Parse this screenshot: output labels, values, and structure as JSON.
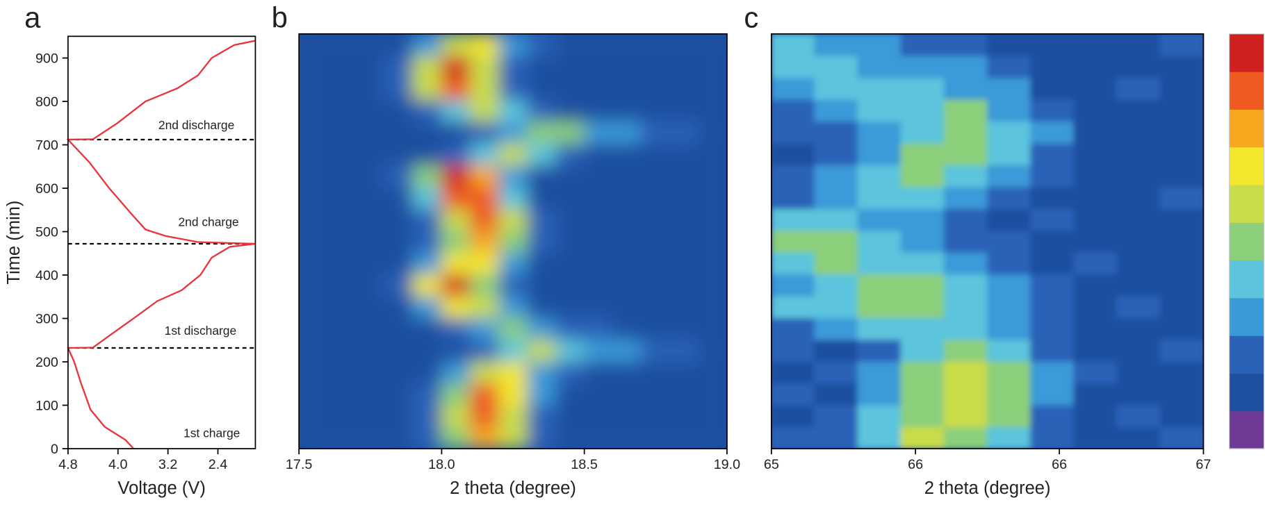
{
  "chart_data": [
    {
      "type": "line",
      "panel_label": "a",
      "xlabel": "Voltage (V)",
      "ylabel": "Time (min)",
      "xlim": [
        4.8,
        1.8
      ],
      "xticks": [
        4.8,
        {
          "value": 4,
          "label": "4.0"
        },
        3.2,
        2.4
      ],
      "ylim": [
        0,
        950
      ],
      "yticks": [
        0,
        100,
        200,
        300,
        400,
        500,
        600,
        700,
        800,
        900
      ],
      "x": [
        3.75,
        3.88,
        4.21,
        4.44,
        4.49,
        4.59,
        4.7,
        4.8,
        4.4,
        4.14,
        3.75,
        3.37,
        2.98,
        2.68,
        2.5,
        2.21,
        1.8,
        2.72,
        3.24,
        3.56,
        3.78,
        4.14,
        4.46,
        4.8,
        4.4,
        4.01,
        3.56,
        3.05,
        2.72,
        2.5,
        2.14,
        1.8
      ],
      "series": [
        {
          "color": "#e8343a",
          "values": [
            0,
            20,
            50,
            90,
            110,
            150,
            200,
            232,
            233,
            260,
            300,
            340,
            365,
            400,
            440,
            465,
            472,
            476,
            490,
            505,
            540,
            600,
            660,
            712,
            713,
            750,
            800,
            830,
            860,
            900,
            930,
            940
          ]
        }
      ],
      "hlines": [
        232,
        472,
        712
      ],
      "annotations": [
        "2nd discharge",
        "2nd charge",
        "1st discharge",
        "1st charge"
      ]
    },
    {
      "type": "heatmap",
      "panel_label": "b",
      "xlabel": "2 theta (degree)",
      "xlim": [
        17.5,
        19.0
      ],
      "xticks": [
        17.5,
        {
          "value": 18,
          "label": "18.0"
        },
        18.5,
        {
          "value": 19,
          "label": "19.0"
        }
      ],
      "ylim": [
        0,
        950
      ],
      "zlim": [
        0,
        10
      ],
      "colormap": [
        "#6e3a96",
        "#1f4fa0",
        "#2a62b8",
        "#3a9ad8",
        "#5cc4dc",
        "#8ccf7a",
        "#c9dc4a",
        "#f3e62c",
        "#f8a81e",
        "#ee5a22",
        "#d02020"
      ],
      "x": [
        17.55,
        17.65,
        17.75,
        17.85,
        17.95,
        18.05,
        18.15,
        18.25,
        18.35,
        18.45,
        18.55,
        18.65,
        18.75,
        18.85,
        18.95
      ],
      "y": [
        25,
        75,
        125,
        175,
        225,
        275,
        325,
        375,
        425,
        475,
        525,
        575,
        625,
        675,
        725,
        775,
        825,
        875,
        925
      ],
      "z": [
        [
          1,
          1,
          1,
          1,
          2,
          5,
          8,
          6,
          2,
          1,
          1,
          1,
          1,
          1,
          1
        ],
        [
          1,
          1,
          1,
          1,
          2,
          6,
          9,
          6,
          2,
          1,
          1,
          1,
          1,
          1,
          1
        ],
        [
          1,
          1,
          1,
          1,
          2,
          5,
          9,
          7,
          3,
          1,
          1,
          1,
          1,
          1,
          1
        ],
        [
          1,
          1,
          1,
          1,
          1,
          3,
          6,
          7,
          3,
          2,
          1,
          1,
          1,
          1,
          1
        ],
        [
          1,
          1,
          1,
          1,
          1,
          1,
          2,
          4,
          6,
          4,
          3,
          3,
          2,
          2,
          1
        ],
        [
          1,
          1,
          1,
          1,
          1,
          2,
          3,
          5,
          3,
          2,
          2,
          1,
          1,
          1,
          1
        ],
        [
          1,
          1,
          1,
          1,
          3,
          7,
          6,
          3,
          1,
          1,
          1,
          1,
          1,
          1,
          1
        ],
        [
          1,
          1,
          1,
          2,
          7,
          10,
          5,
          2,
          1,
          1,
          1,
          1,
          1,
          1,
          1
        ],
        [
          1,
          1,
          1,
          1,
          3,
          7,
          7,
          3,
          1,
          1,
          1,
          1,
          1,
          1,
          1
        ],
        [
          1,
          1,
          1,
          1,
          2,
          5,
          8,
          5,
          2,
          1,
          1,
          1,
          1,
          1,
          1
        ],
        [
          1,
          1,
          1,
          1,
          2,
          6,
          9,
          6,
          2,
          1,
          1,
          1,
          1,
          1,
          1
        ],
        [
          1,
          1,
          1,
          1,
          4,
          9,
          9,
          4,
          1,
          1,
          1,
          1,
          1,
          1,
          1
        ],
        [
          1,
          1,
          1,
          2,
          5,
          10,
          8,
          3,
          1,
          1,
          1,
          1,
          1,
          1,
          1
        ],
        [
          1,
          1,
          1,
          1,
          1,
          2,
          4,
          6,
          4,
          2,
          1,
          1,
          1,
          1,
          1
        ],
        [
          1,
          1,
          1,
          1,
          1,
          1,
          2,
          3,
          5,
          5,
          3,
          3,
          2,
          2,
          1
        ],
        [
          1,
          1,
          1,
          1,
          2,
          4,
          6,
          4,
          2,
          1,
          1,
          1,
          1,
          1,
          1
        ],
        [
          1,
          1,
          1,
          2,
          6,
          9,
          6,
          2,
          1,
          1,
          1,
          1,
          1,
          1,
          1
        ],
        [
          1,
          1,
          1,
          2,
          6,
          10,
          6,
          2,
          1,
          1,
          1,
          1,
          1,
          1,
          1
        ],
        [
          1,
          1,
          1,
          1,
          3,
          6,
          7,
          3,
          2,
          1,
          1,
          1,
          1,
          1,
          1
        ]
      ]
    },
    {
      "type": "heatmap",
      "panel_label": "c",
      "xlabel": "2 theta (degree)",
      "xlim": [
        65,
        67
      ],
      "xticks": [
        65,
        {
          "value": 65.667,
          "label": "66"
        },
        {
          "value": 66.333,
          "label": "66"
        },
        67
      ],
      "ylim": [
        0,
        950
      ],
      "zlim": [
        0,
        10
      ],
      "colorbar": true,
      "colormap": [
        "#6e3a96",
        "#1f4fa0",
        "#2a62b8",
        "#3a9ad8",
        "#5cc4dc",
        "#8ccf7a",
        "#c9dc4a",
        "#f3e62c",
        "#f8a81e",
        "#ee5a22",
        "#d02020"
      ],
      "x": [
        65.1,
        65.3,
        65.5,
        65.7,
        65.9,
        66.1,
        66.3,
        66.5,
        66.7,
        66.9
      ],
      "y": [
        25,
        75,
        125,
        175,
        225,
        275,
        325,
        375,
        425,
        475,
        525,
        575,
        625,
        675,
        725,
        775,
        825,
        875,
        925
      ],
      "z": [
        [
          2,
          2,
          4,
          6,
          5,
          4,
          2,
          1,
          1,
          2
        ],
        [
          1,
          2,
          4,
          5,
          6,
          5,
          2,
          1,
          2,
          1
        ],
        [
          2,
          1,
          3,
          5,
          6,
          5,
          3,
          1,
          1,
          1
        ],
        [
          1,
          2,
          3,
          5,
          6,
          5,
          3,
          2,
          1,
          1
        ],
        [
          2,
          1,
          2,
          4,
          5,
          4,
          2,
          1,
          1,
          2
        ],
        [
          2,
          3,
          4,
          4,
          4,
          3,
          2,
          1,
          1,
          1
        ],
        [
          4,
          4,
          5,
          5,
          4,
          3,
          2,
          1,
          2,
          1
        ],
        [
          3,
          4,
          5,
          5,
          4,
          3,
          2,
          1,
          1,
          1
        ],
        [
          4,
          5,
          4,
          4,
          3,
          2,
          1,
          2,
          1,
          1
        ],
        [
          5,
          5,
          4,
          3,
          2,
          2,
          1,
          1,
          1,
          1
        ],
        [
          4,
          4,
          3,
          3,
          2,
          1,
          2,
          1,
          1,
          1
        ],
        [
          2,
          3,
          4,
          4,
          3,
          2,
          1,
          1,
          1,
          2
        ],
        [
          2,
          3,
          4,
          5,
          4,
          3,
          2,
          1,
          1,
          1
        ],
        [
          1,
          2,
          3,
          5,
          5,
          4,
          2,
          1,
          1,
          1
        ],
        [
          2,
          2,
          3,
          4,
          5,
          4,
          3,
          1,
          1,
          1
        ],
        [
          2,
          3,
          4,
          4,
          5,
          3,
          2,
          1,
          1,
          1
        ],
        [
          3,
          4,
          4,
          4,
          3,
          3,
          1,
          1,
          2,
          1
        ],
        [
          4,
          4,
          3,
          3,
          3,
          2,
          1,
          1,
          1,
          1
        ],
        [
          4,
          3,
          3,
          2,
          2,
          1,
          1,
          1,
          1,
          2
        ]
      ]
    }
  ]
}
